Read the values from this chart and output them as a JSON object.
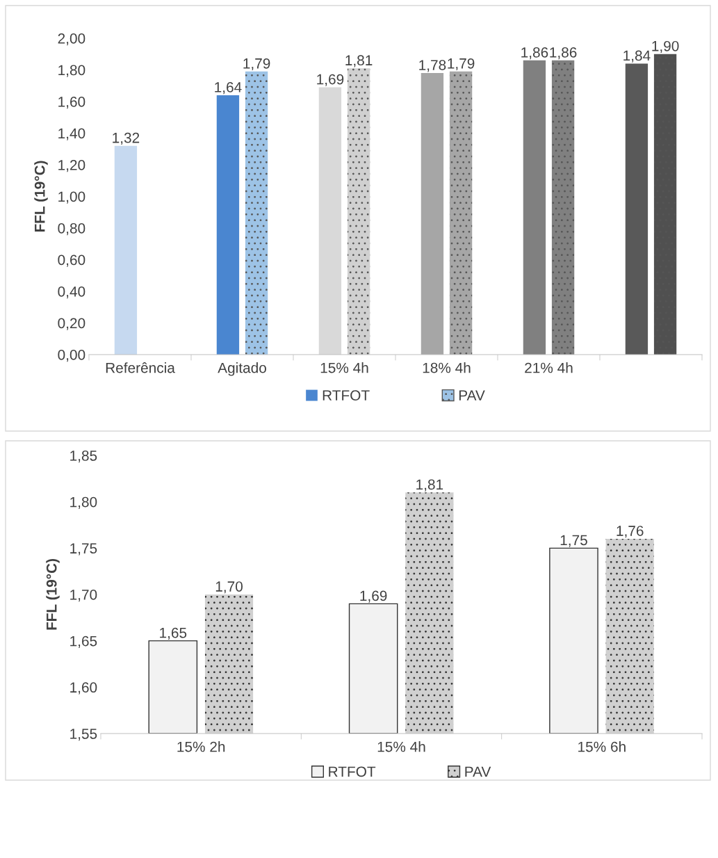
{
  "chart_data": [
    {
      "type": "bar",
      "ylabel": "FFL (19°C)",
      "categories": [
        "Referência",
        "Agitado",
        "15% 4h",
        "18% 4h",
        "21% 4h",
        null
      ],
      "series": [
        {
          "name": "RTFOT",
          "color": "#4a86d0",
          "colors": [
            "#c6d9f0",
            "#4a86d0",
            "#d9d9d9",
            "#a6a6a6",
            "#808080",
            "#595959"
          ],
          "values": [
            1.32,
            1.64,
            1.69,
            1.78,
            1.86,
            1.84
          ],
          "value_labels": [
            "1,32",
            "1,64",
            "1,69",
            "1,78",
            "1,86",
            "1,84"
          ]
        },
        {
          "name": "PAV",
          "color": "#9dc3e6",
          "colors": [
            "#9dc3e6",
            "#9dc3e6",
            "#d0d0d0",
            "#a6a6a6",
            "#808080",
            "#505050"
          ],
          "values": [
            null,
            1.79,
            1.81,
            1.79,
            1.86,
            1.9
          ],
          "value_labels": [
            null,
            "1,79",
            "1,81",
            "1,79",
            "1,86",
            "1,90"
          ]
        }
      ],
      "ylim": [
        0,
        2
      ],
      "yticks": [
        {
          "value": 0,
          "label": "0,00"
        },
        {
          "value": 0.2,
          "label": "0,20"
        },
        {
          "value": 0.4,
          "label": "0,40"
        },
        {
          "value": 0.6,
          "label": "0,60"
        },
        {
          "value": 0.8,
          "label": "0,80"
        },
        {
          "value": 1.0,
          "label": "1,00"
        },
        {
          "value": 1.2,
          "label": "1,20"
        },
        {
          "value": 1.4,
          "label": "1,40"
        },
        {
          "value": 1.6,
          "label": "1,60"
        },
        {
          "value": 1.8,
          "label": "1,80"
        },
        {
          "value": 2.0,
          "label": "2,00"
        }
      ],
      "grid": false,
      "legend": "bottom"
    },
    {
      "type": "bar",
      "ylabel": "FFL (19°C)",
      "categories": [
        "15% 2h",
        "15% 4h",
        "15% 6h"
      ],
      "series": [
        {
          "name": "RTFOT",
          "color": "#f2f2f2",
          "values": [
            1.65,
            1.69,
            1.75
          ],
          "value_labels": [
            "1,65",
            "1,69",
            "1,75"
          ]
        },
        {
          "name": "PAV",
          "color": "#d0d0d0",
          "values": [
            1.7,
            1.81,
            1.76
          ],
          "value_labels": [
            "1,70",
            "1,81",
            "1,76"
          ]
        }
      ],
      "ylim": [
        1.55,
        1.85
      ],
      "yticks": [
        {
          "value": 1.55,
          "label": "1,55"
        },
        {
          "value": 1.6,
          "label": "1,60"
        },
        {
          "value": 1.65,
          "label": "1,65"
        },
        {
          "value": 1.7,
          "label": "1,70"
        },
        {
          "value": 1.75,
          "label": "1,75"
        },
        {
          "value": 1.8,
          "label": "1,80"
        },
        {
          "value": 1.85,
          "label": "1,85"
        }
      ],
      "grid": false,
      "legend": "bottom"
    }
  ]
}
